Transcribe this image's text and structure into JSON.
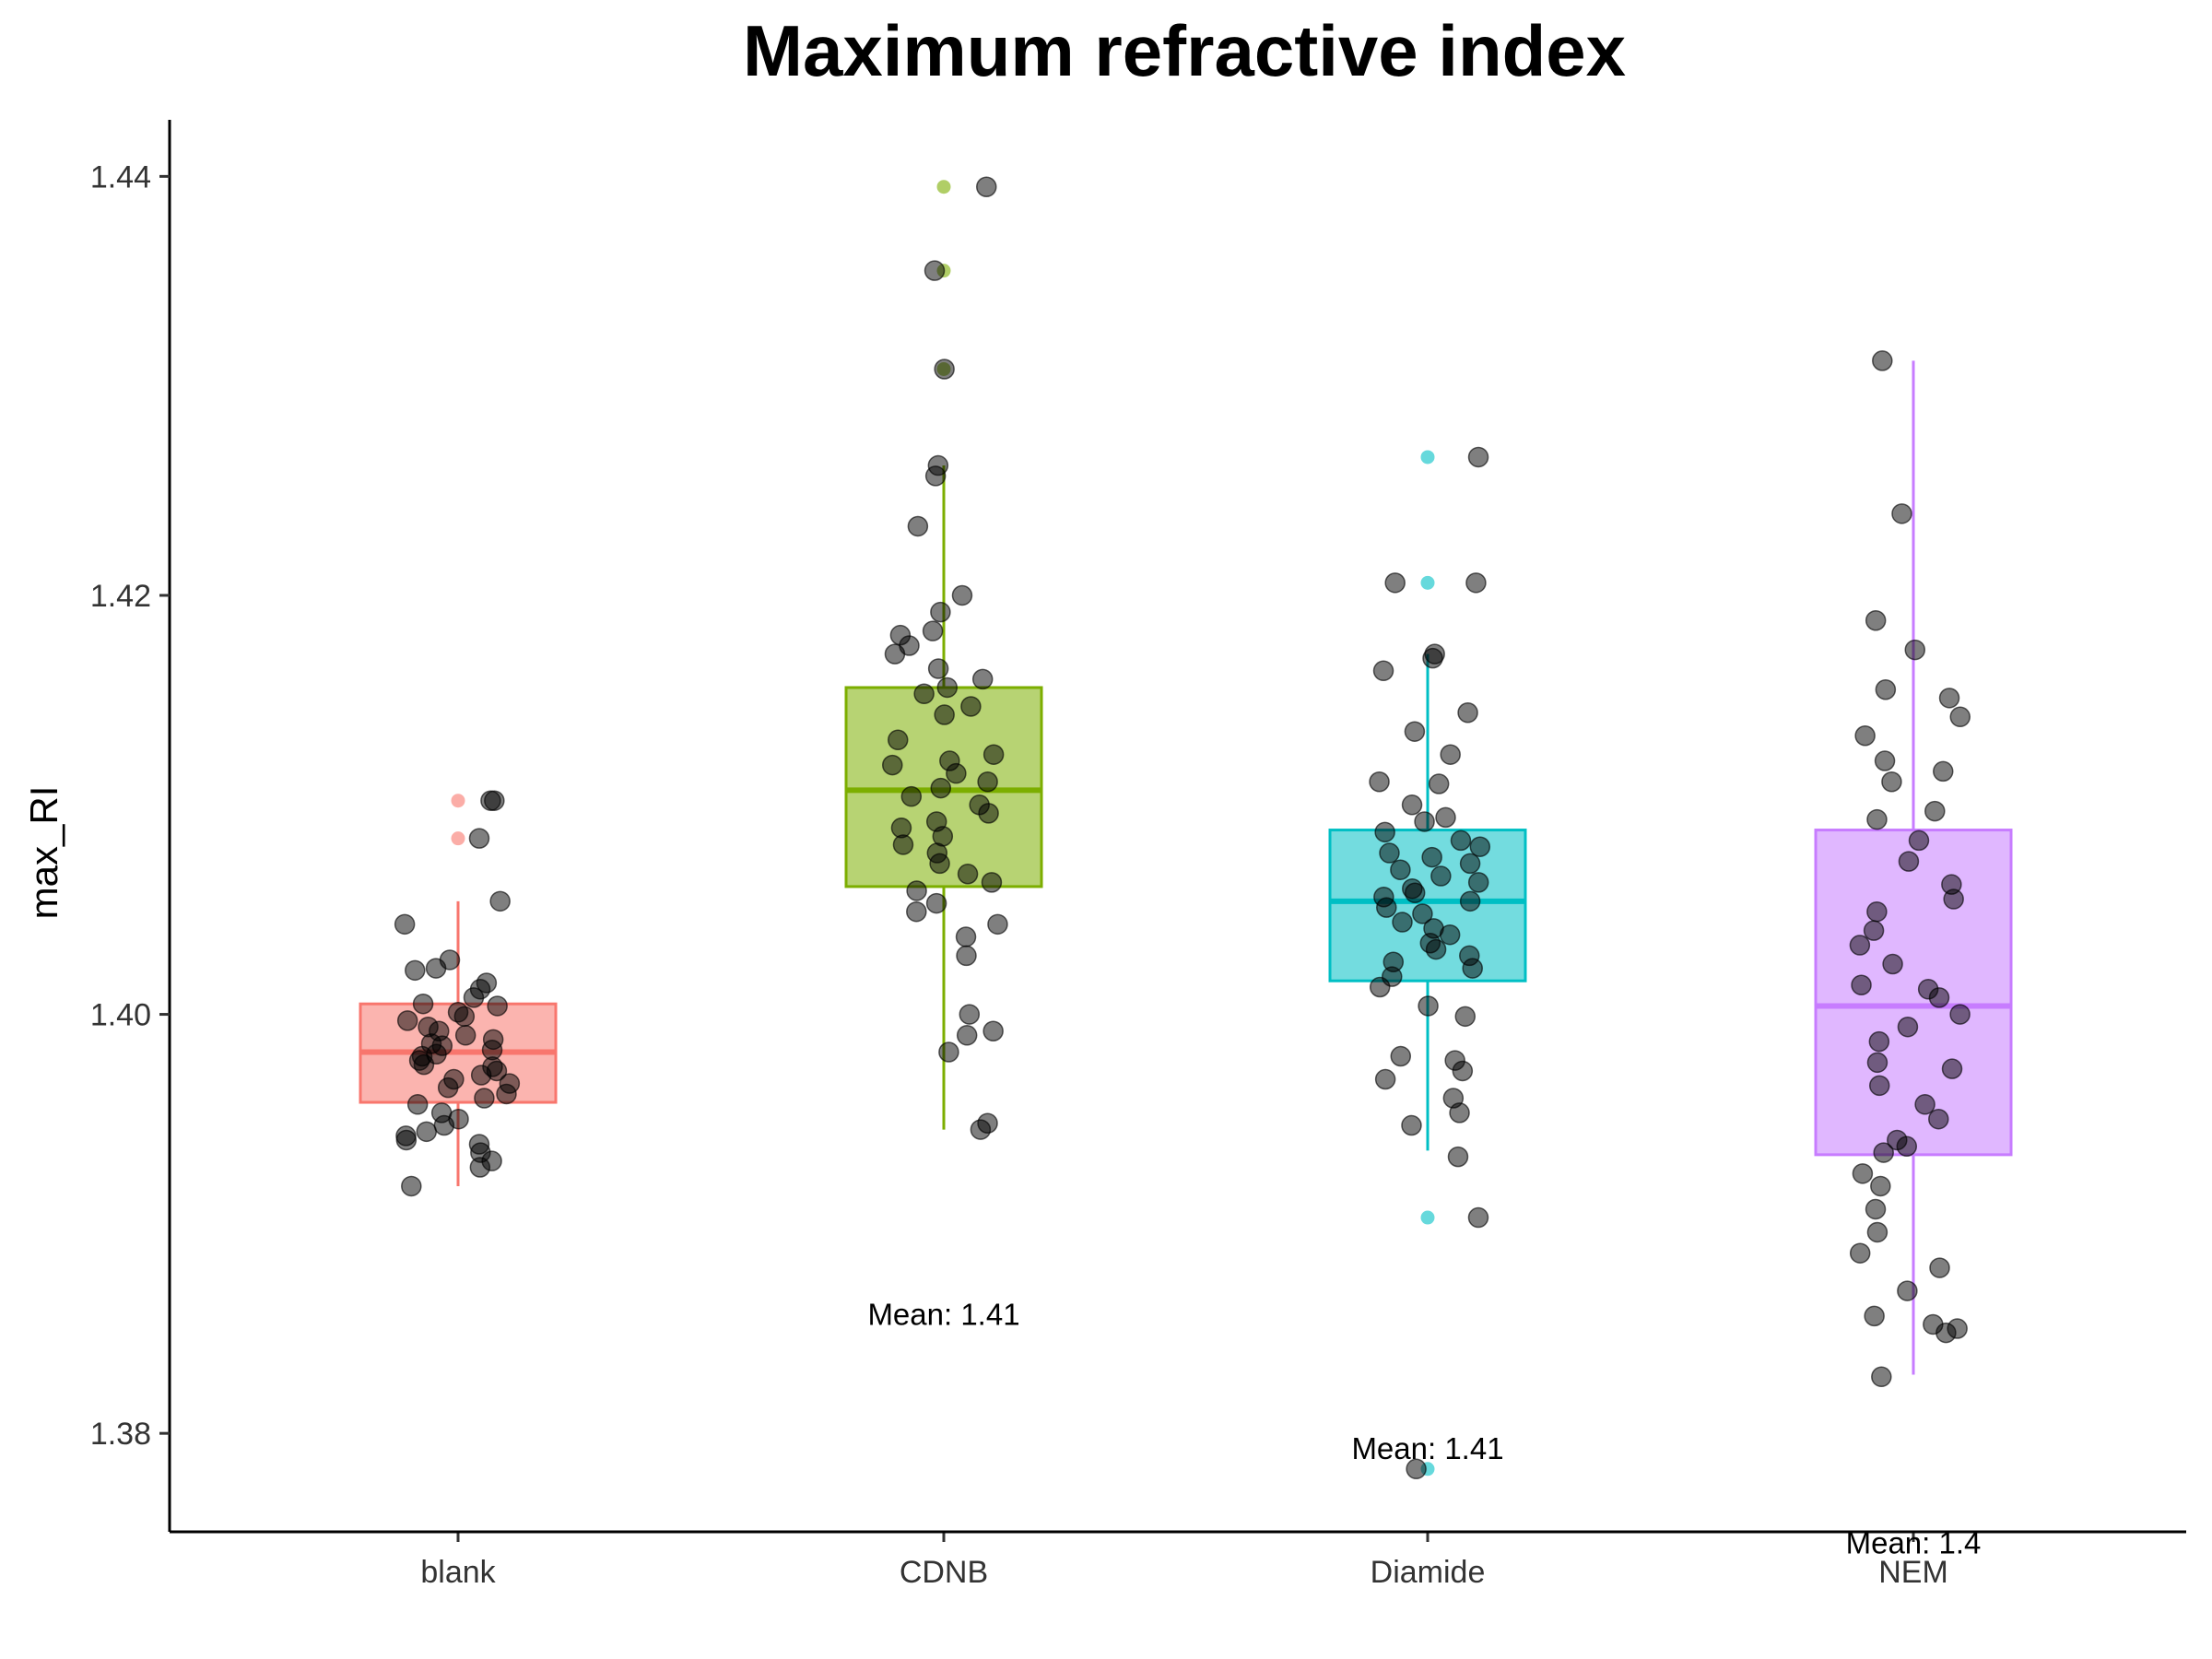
{
  "chart_data": {
    "type": "box",
    "title": "Maximum refractive index",
    "xlabel": "",
    "ylabel": "max_RI",
    "ylim": [
      1.3753,
      1.4427
    ],
    "y_ticks": [
      "1.38",
      "1.40",
      "1.42",
      "1.44"
    ],
    "y_tick_values": [
      1.38,
      1.4,
      1.42,
      1.44
    ],
    "grid": false,
    "legend": "none",
    "categories": [
      "blank",
      "CDNB",
      "Diamide",
      "NEM"
    ],
    "colors": [
      "#F8766D",
      "#7CAE00",
      "#00BFC4",
      "#C77CFF"
    ],
    "boxes": [
      {
        "category": "blank",
        "q1": 1.3958,
        "median": 1.3982,
        "q3": 1.4005,
        "whisker_low": 1.3918,
        "whisker_high": 1.4054,
        "outliers": [
          1.4102,
          1.4084
        ]
      },
      {
        "category": "CDNB",
        "q1": 1.4061,
        "median": 1.4107,
        "q3": 1.4156,
        "whisker_low": 1.3945,
        "whisker_high": 1.4262,
        "outliers": [
          1.4395,
          1.4355,
          1.4308
        ]
      },
      {
        "category": "Diamide",
        "q1": 1.4016,
        "median": 1.4054,
        "q3": 1.4088,
        "whisker_low": 1.3935,
        "whisker_high": 1.4172,
        "outliers": [
          1.4266,
          1.4206,
          1.3903,
          1.3783
        ]
      },
      {
        "category": "NEM",
        "q1": 1.3933,
        "median": 1.4004,
        "q3": 1.4088,
        "whisker_low": 1.3828,
        "whisker_high": 1.4312,
        "outliers": []
      }
    ],
    "jitter_points": [
      {
        "category": "blank",
        "values": [
          1.4102,
          1.4102,
          1.4084,
          1.4054,
          1.4043,
          1.4026,
          1.4022,
          1.4021,
          1.4015,
          1.4012,
          1.4008,
          1.4005,
          1.4004,
          1.4001,
          1.3999,
          1.3997,
          1.3994,
          1.3992,
          1.399,
          1.3988,
          1.3986,
          1.3985,
          1.3983,
          1.3981,
          1.398,
          1.3978,
          1.3976,
          1.3975,
          1.3973,
          1.3971,
          1.3969,
          1.3967,
          1.3965,
          1.3962,
          1.396,
          1.3957,
          1.3953,
          1.395,
          1.3947,
          1.3944,
          1.3942,
          1.394,
          1.3938,
          1.3934,
          1.393,
          1.3927,
          1.3918
        ]
      },
      {
        "category": "CDNB",
        "values": [
          1.4395,
          1.4355,
          1.4308,
          1.4262,
          1.4257,
          1.4233,
          1.42,
          1.4192,
          1.4183,
          1.4181,
          1.4176,
          1.4172,
          1.4165,
          1.416,
          1.4156,
          1.4153,
          1.4147,
          1.4143,
          1.4131,
          1.4124,
          1.4121,
          1.4119,
          1.4115,
          1.4111,
          1.4108,
          1.4104,
          1.41,
          1.4096,
          1.4092,
          1.4089,
          1.4085,
          1.4081,
          1.4077,
          1.4072,
          1.4067,
          1.4063,
          1.4059,
          1.4053,
          1.4049,
          1.4043,
          1.4037,
          1.4028,
          1.4,
          1.3992,
          1.399,
          1.3982,
          1.3948,
          1.3945
        ]
      },
      {
        "category": "Diamide",
        "values": [
          1.4266,
          1.4206,
          1.4206,
          1.4172,
          1.417,
          1.4164,
          1.4144,
          1.4135,
          1.4124,
          1.4111,
          1.411,
          1.41,
          1.4094,
          1.4092,
          1.4087,
          1.4083,
          1.408,
          1.4077,
          1.4075,
          1.4072,
          1.4069,
          1.4066,
          1.4063,
          1.406,
          1.4058,
          1.4056,
          1.4054,
          1.4051,
          1.4048,
          1.4044,
          1.4041,
          1.4038,
          1.4034,
          1.4031,
          1.4028,
          1.4025,
          1.4022,
          1.4018,
          1.4013,
          1.4004,
          1.3999,
          1.398,
          1.3978,
          1.3973,
          1.3969,
          1.396,
          1.3953,
          1.3947,
          1.3932,
          1.3903,
          1.3783
        ]
      },
      {
        "category": "NEM",
        "values": [
          1.4312,
          1.4239,
          1.4188,
          1.4174,
          1.4155,
          1.4151,
          1.4142,
          1.4133,
          1.4121,
          1.4116,
          1.4111,
          1.4097,
          1.4093,
          1.4083,
          1.4073,
          1.4062,
          1.4055,
          1.4049,
          1.404,
          1.4033,
          1.4024,
          1.4014,
          1.4012,
          1.4008,
          1.4,
          1.3994,
          1.3987,
          1.3977,
          1.3974,
          1.3966,
          1.3957,
          1.395,
          1.394,
          1.3937,
          1.3934,
          1.3924,
          1.3918,
          1.3907,
          1.3896,
          1.3886,
          1.3879,
          1.3868,
          1.3856,
          1.3852,
          1.385,
          1.3848,
          1.3827
        ]
      }
    ],
    "mean_labels": [
      {
        "category": "blank",
        "text": "",
        "y": null
      },
      {
        "category": "CDNB",
        "text": "Mean: 1.41",
        "y": 1.3857
      },
      {
        "category": "Diamide",
        "text": "Mean: 1.41",
        "y": 1.3793
      },
      {
        "category": "NEM",
        "text": "Mean: 1.4",
        "y": 1.3748
      }
    ]
  }
}
